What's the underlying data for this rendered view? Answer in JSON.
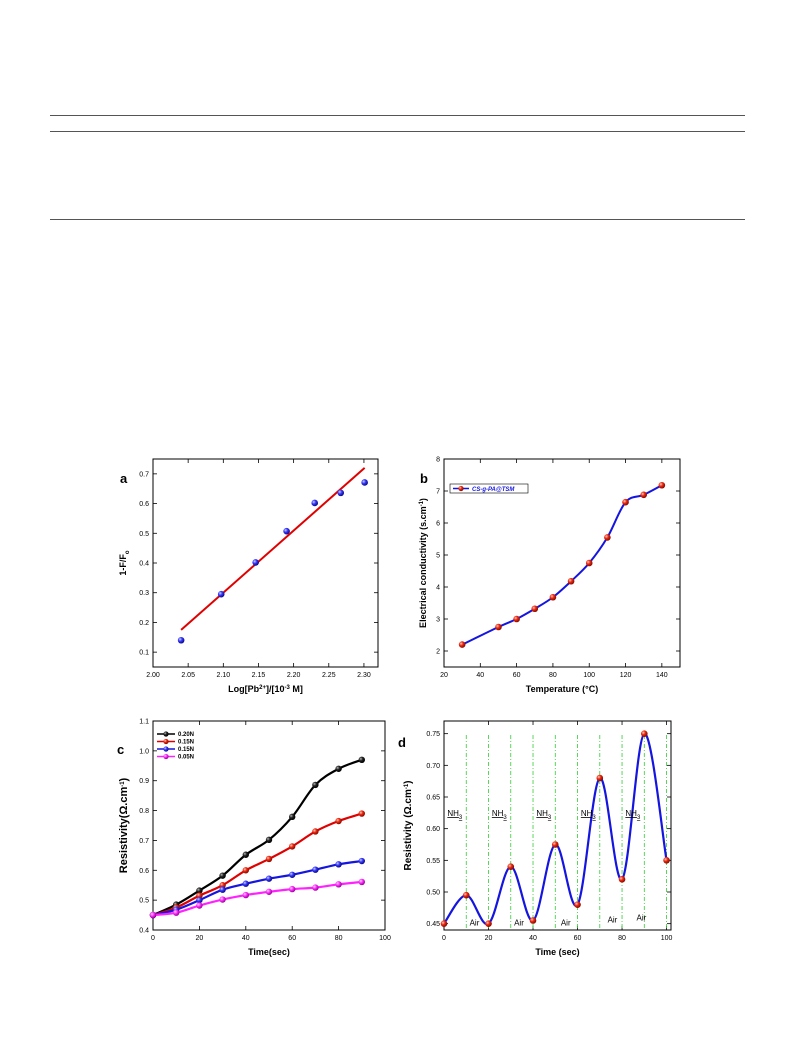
{
  "chart_data": [
    {
      "panel": "a",
      "type": "scatter",
      "xlabel_pre": "Log[Pb",
      "xlabel_sup": "2+",
      "xlabel_mid": "]/[10",
      "xlabel_sup2": "-3",
      "xlabel_post": " M]",
      "ylabel_main": "1-F/F",
      "ylabel_sub": "o",
      "xlim": [
        2.0,
        2.32
      ],
      "ylim": [
        0.05,
        0.75
      ],
      "xticks": [
        "2.00",
        "2.05",
        "2.10",
        "2.15",
        "2.20",
        "2.25",
        "2.30"
      ],
      "yticks": [
        "0.1",
        "0.2",
        "0.3",
        "0.4",
        "0.5",
        "0.6",
        "0.7"
      ],
      "points": {
        "x": [
          2.04,
          2.097,
          2.146,
          2.19,
          2.23,
          2.267,
          2.301
        ],
        "y": [
          0.14,
          0.295,
          0.402,
          0.507,
          0.602,
          0.636,
          0.671
        ]
      },
      "fit": {
        "x": [
          2.04,
          2.301
        ],
        "y": [
          0.175,
          0.72
        ]
      },
      "point_color": "#3333ff",
      "fit_color": "#e00000"
    },
    {
      "panel": "b",
      "type": "line",
      "xlabel_pre": "Temperature (",
      "xlabel_deg": "°C)",
      "ylabel_pre": "Electrical conductivity (s.cm",
      "ylabel_sup": "-1",
      "ylabel_post": ")",
      "xlim": [
        20,
        150
      ],
      "ylim": [
        1.5,
        8
      ],
      "xticks": [
        "20",
        "40",
        "60",
        "80",
        "100",
        "120",
        "140"
      ],
      "yticks": [
        "2",
        "3",
        "4",
        "5",
        "6",
        "7",
        "8"
      ],
      "legend": "CS-g-PA@TSM",
      "series": [
        {
          "name": "CS-g-PA@TSM",
          "x": [
            30,
            50,
            60,
            70,
            80,
            90,
            100,
            110,
            120,
            130,
            140
          ],
          "y": [
            2.2,
            2.75,
            3.0,
            3.32,
            3.68,
            4.18,
            4.75,
            5.55,
            6.65,
            6.88,
            7.18
          ]
        }
      ],
      "line_color": "#1515e0",
      "point_color": "#e00000"
    },
    {
      "panel": "c",
      "type": "line",
      "xlabel": "Time(sec)",
      "ylabel_pre": "Resistivity(Ω.cm",
      "ylabel_sup": "-1",
      "ylabel_post": ")",
      "xlim": [
        0,
        100
      ],
      "ylim": [
        0.4,
        1.1
      ],
      "xticks": [
        "0",
        "20",
        "40",
        "60",
        "80",
        "100"
      ],
      "yticks": [
        "0.4",
        "0.5",
        "0.6",
        "0.7",
        "0.8",
        "0.9",
        "1.0",
        "1.1"
      ],
      "x": [
        0,
        10,
        20,
        30,
        40,
        50,
        60,
        70,
        80,
        90
      ],
      "series": [
        {
          "name": "0.20N",
          "color": "#000000",
          "values": [
            0.45,
            0.485,
            0.532,
            0.582,
            0.652,
            0.702,
            0.779,
            0.886,
            0.94,
            0.97
          ]
        },
        {
          "name": "0.15N",
          "color": "#e00000",
          "values": [
            0.45,
            0.475,
            0.515,
            0.55,
            0.6,
            0.638,
            0.68,
            0.73,
            0.765,
            0.79
          ]
        },
        {
          "name": "0.15N",
          "color": "#1515e0",
          "values": [
            0.45,
            0.468,
            0.5,
            0.535,
            0.555,
            0.572,
            0.585,
            0.602,
            0.62,
            0.631
          ]
        },
        {
          "name": "0.05N",
          "color": "#ff22ff",
          "values": [
            0.45,
            0.458,
            0.482,
            0.502,
            0.517,
            0.528,
            0.537,
            0.542,
            0.553,
            0.561
          ]
        }
      ]
    },
    {
      "panel": "d",
      "type": "line",
      "xlabel": "Time (sec)",
      "ylabel_pre": "Resistivity (Ω.cm",
      "ylabel_sup": "-1",
      "ylabel_post": ")",
      "xlim": [
        0,
        102
      ],
      "ylim": [
        0.44,
        0.77
      ],
      "xticks": [
        "0",
        "20",
        "40",
        "60",
        "80",
        "100"
      ],
      "yticks": [
        "0.45",
        "0.50",
        "0.55",
        "0.60",
        "0.65",
        "0.70",
        "0.75"
      ],
      "series": [
        {
          "name": "",
          "x": [
            0,
            10,
            20,
            30,
            40,
            50,
            60,
            70,
            80,
            90,
            100
          ],
          "y": [
            0.45,
            0.495,
            0.45,
            0.54,
            0.455,
            0.575,
            0.48,
            0.68,
            0.52,
            0.75,
            0.55
          ]
        }
      ],
      "gridlines_x": [
        10,
        20,
        30,
        40,
        50,
        60,
        70,
        80,
        90,
        100
      ],
      "annotations": [
        {
          "text": "NH",
          "sub": "3",
          "x": 1.5,
          "y": 0.62
        },
        {
          "text": "Air",
          "x": 11.5,
          "y": 0.447
        },
        {
          "text": "NH",
          "sub": "3",
          "x": 21.5,
          "y": 0.62
        },
        {
          "text": "Air",
          "x": 31.5,
          "y": 0.447
        },
        {
          "text": "NH",
          "sub": "3",
          "x": 41.5,
          "y": 0.62
        },
        {
          "text": "Air",
          "x": 52.5,
          "y": 0.447
        },
        {
          "text": "NH",
          "sub": "3",
          "x": 61.5,
          "y": 0.62
        },
        {
          "text": "Air",
          "x": 73.5,
          "y": 0.452
        },
        {
          "text": "NH",
          "sub": "3",
          "x": 81.5,
          "y": 0.62
        },
        {
          "text": "Air",
          "x": 86.5,
          "y": 0.455
        }
      ],
      "line_color": "#1515e0",
      "point_color": "#e00000",
      "grid_color": "#33cc33"
    }
  ]
}
